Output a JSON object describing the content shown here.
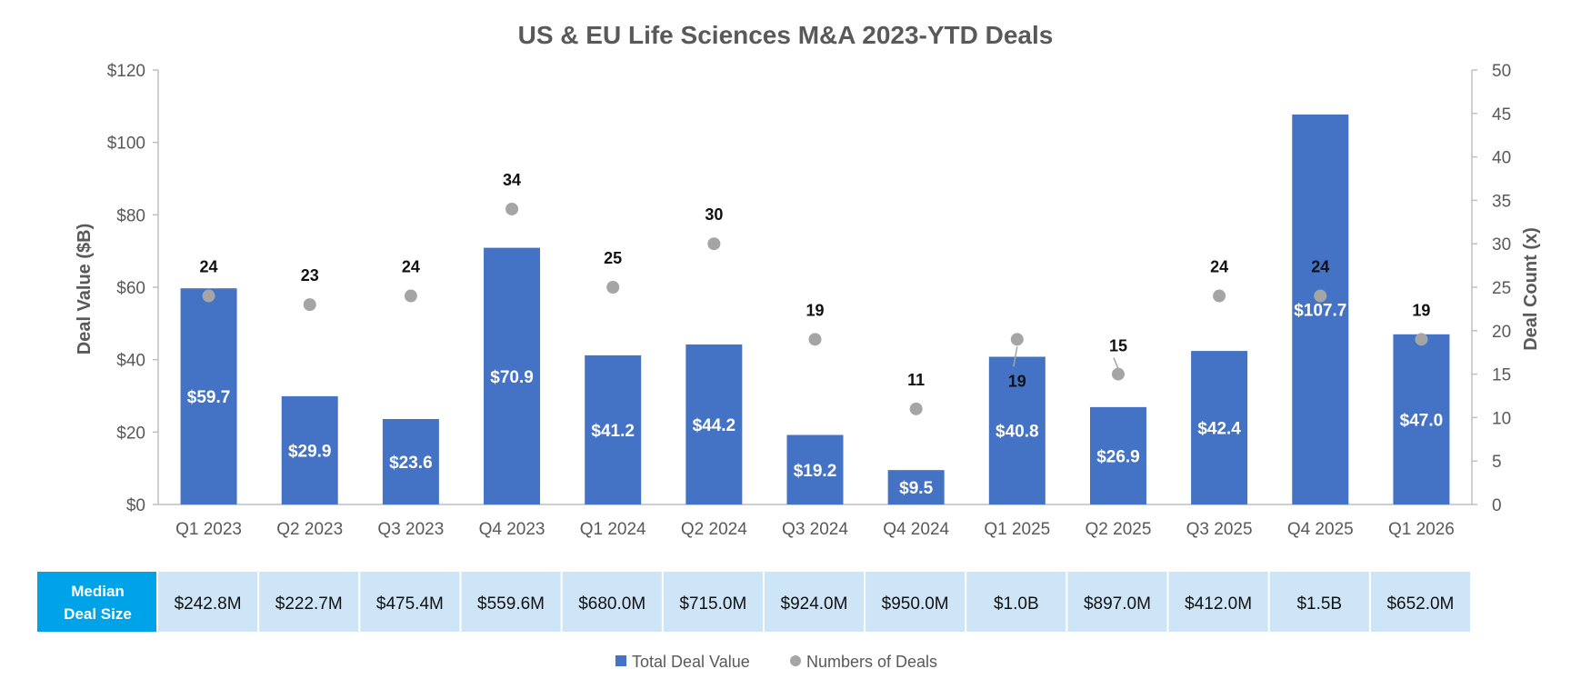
{
  "chart_data": {
    "type": "bar",
    "title": "US & EU Life Sciences M&A 2023-YTD Deals",
    "ylabel": "Deal Value ($B)",
    "y2label": "Deal Count (x)",
    "ylim": [
      0,
      120
    ],
    "y2lim": [
      0,
      50
    ],
    "yticks": [
      "$0",
      "$20",
      "$40",
      "$60",
      "$80",
      "$100",
      "$120"
    ],
    "y2ticks": [
      "0",
      "5",
      "10",
      "15",
      "20",
      "25",
      "30",
      "35",
      "40",
      "45",
      "50"
    ],
    "grid": false,
    "categories": [
      "Q1 2023",
      "Q2 2023",
      "Q3 2023",
      "Q4 2023",
      "Q1 2024",
      "Q2 2024",
      "Q3 2024",
      "Q4 2024",
      "Q1 2025",
      "Q2 2025",
      "Q3 2025",
      "Q4 2025",
      "Q1 2026"
    ],
    "series": [
      {
        "name": "Total Deal Value",
        "type": "bar",
        "axis": "left",
        "color": "#4472C4",
        "values": [
          59.7,
          29.9,
          23.6,
          70.9,
          41.2,
          44.2,
          19.2,
          9.5,
          40.8,
          26.9,
          42.4,
          107.7,
          47.0
        ],
        "labels": [
          "$59.7",
          "$29.9",
          "$23.6",
          "$70.9",
          "$41.2",
          "$44.2",
          "$19.2",
          "$9.5",
          "$40.8",
          "$26.9",
          "$42.4",
          "$107.7",
          "$47.0"
        ]
      },
      {
        "name": "Numbers of Deals",
        "type": "scatter",
        "axis": "right",
        "color": "#A5A5A5",
        "values": [
          24,
          23,
          24,
          34,
          25,
          30,
          19,
          11,
          19,
          15,
          24,
          24,
          19
        ],
        "labels": [
          "24",
          "23",
          "24",
          "34",
          "25",
          "30",
          "19",
          "11",
          "19",
          "15",
          "24",
          "24",
          "19"
        ]
      }
    ],
    "legend": "bottom-center",
    "median_row": {
      "header": [
        "Median",
        "Deal Size"
      ],
      "values": [
        "$242.8M",
        "$222.7M",
        "$475.4M",
        "$559.6M",
        "$680.0M",
        "$715.0M",
        "$924.0M",
        "$950.0M",
        "$1.0B",
        "$897.0M",
        "$412.0M",
        "$1.5B",
        "$652.0M"
      ],
      "header_color": "#00A2E8",
      "cell_color": "#CDE5F7"
    }
  }
}
